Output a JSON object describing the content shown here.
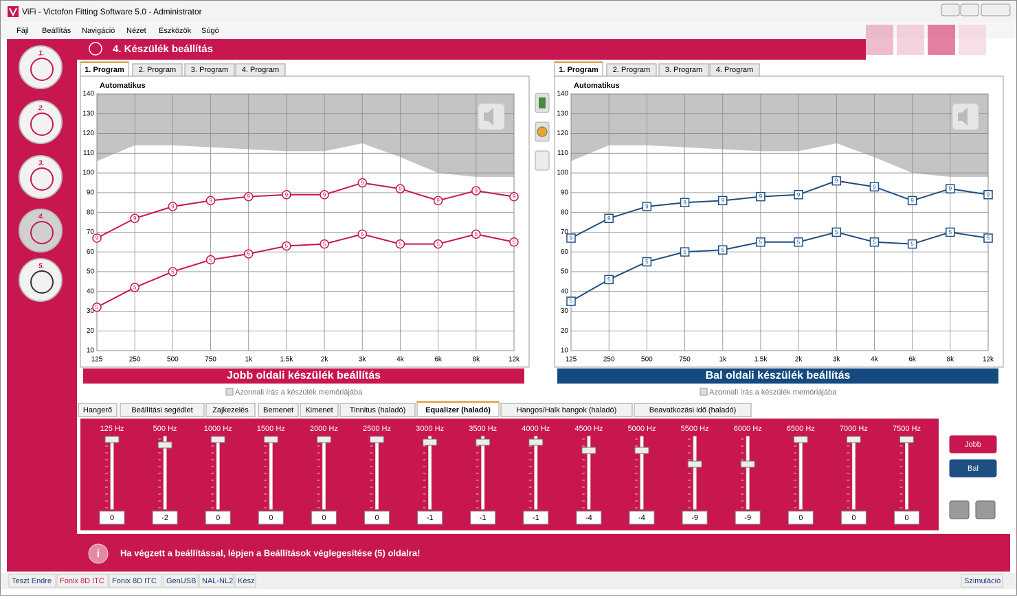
{
  "window": {
    "title": "ViFi - Victofon Fitting Software 5.0 - Administrator"
  },
  "menu": [
    "Fájl",
    "Beállítás",
    "Navigáció",
    "Nézet",
    "Eszközök",
    "Súgó"
  ],
  "header": {
    "title": "4. Készülék beállítás"
  },
  "steps": [
    "1.",
    "2.",
    "3.",
    "4.",
    "5."
  ],
  "charts": [
    {
      "type": "line",
      "tabs": [
        "1. Program",
        "2. Program",
        "3. Program",
        "4. Program"
      ],
      "active_tab": 0,
      "label": "Automatikus",
      "categories": [
        "125",
        "250",
        "500",
        "750",
        "1k",
        "1.5k",
        "2k",
        "3k",
        "4k",
        "6k",
        "8k",
        "12k"
      ],
      "ylim": [
        10,
        140
      ],
      "yticks": [
        10,
        20,
        30,
        40,
        50,
        60,
        70,
        80,
        90,
        100,
        110,
        120,
        130,
        140
      ],
      "grid": true,
      "marker_shape": "circle",
      "limit": {
        "color": "#c4c4c4",
        "values": [
          106,
          114,
          114,
          113,
          112,
          111,
          111,
          115,
          108,
          100,
          98,
          98
        ]
      },
      "series": [
        {
          "marker": "9",
          "color": "#c8174f",
          "values": [
            67,
            77,
            83,
            86,
            88,
            89,
            89,
            95,
            92,
            86,
            91,
            88
          ]
        },
        {
          "marker": "5",
          "color": "#c8174f",
          "values": [
            32,
            42,
            50,
            56,
            59,
            63,
            64,
            69,
            64,
            64,
            69,
            65
          ]
        }
      ],
      "banner": "Jobb oldali készülék beállítás",
      "banner_color": "#c8174f",
      "checkbox": "Azonnali írás a készülék memóriájába"
    },
    {
      "type": "line",
      "tabs": [
        "1. Program",
        "2. Program",
        "3. Program",
        "4. Program"
      ],
      "active_tab": 0,
      "label": "Automatikus",
      "categories": [
        "125",
        "250",
        "500",
        "750",
        "1k",
        "1.5k",
        "2k",
        "3k",
        "4k",
        "6k",
        "8k",
        "12k"
      ],
      "ylim": [
        10,
        140
      ],
      "yticks": [
        10,
        20,
        30,
        40,
        50,
        60,
        70,
        80,
        90,
        100,
        110,
        120,
        130,
        140
      ],
      "grid": true,
      "marker_shape": "square",
      "limit": {
        "color": "#c4c4c4",
        "values": [
          106,
          114,
          114,
          113,
          112,
          111,
          111,
          115,
          108,
          100,
          98,
          98
        ]
      },
      "series": [
        {
          "marker": "9",
          "color": "#1f4e82",
          "values": [
            67,
            77,
            83,
            85,
            86,
            88,
            89,
            96,
            93,
            86,
            92,
            89
          ]
        },
        {
          "marker": "5",
          "color": "#1f4e82",
          "values": [
            35,
            46,
            55,
            60,
            61,
            65,
            65,
            70,
            65,
            64,
            70,
            67
          ]
        }
      ],
      "banner": "Bal oldali készülék beállítás",
      "banner_color": "#144a80",
      "checkbox": "Azonnali írás a készülék memóriájába"
    }
  ],
  "tabs": {
    "items": [
      "Hangerő",
      "Beállítási segédlet",
      "Zajkezelés",
      "Bemenet",
      "Kimenet",
      "Tinnitus (haladó)",
      "Equalizer (haladó)",
      "Hangos/Halk hangok (haladó)",
      "Beavatkozási idő (haladó)"
    ],
    "active": 6
  },
  "equalizer": {
    "range": [
      -25,
      0
    ],
    "bands": [
      {
        "label": "125 Hz",
        "value": 0
      },
      {
        "label": "500 Hz",
        "value": -2
      },
      {
        "label": "1000 Hz",
        "value": 0
      },
      {
        "label": "1500 Hz",
        "value": 0
      },
      {
        "label": "2000 Hz",
        "value": 0
      },
      {
        "label": "2500 Hz",
        "value": 0
      },
      {
        "label": "3000 Hz",
        "value": -1
      },
      {
        "label": "3500 Hz",
        "value": -1
      },
      {
        "label": "4000 Hz",
        "value": -1
      },
      {
        "label": "4500 Hz",
        "value": -4
      },
      {
        "label": "5000 Hz",
        "value": -4
      },
      {
        "label": "5500 Hz",
        "value": -9
      },
      {
        "label": "6000 Hz",
        "value": -9
      },
      {
        "label": "6500 Hz",
        "value": 0
      },
      {
        "label": "7000 Hz",
        "value": 0
      },
      {
        "label": "7500 Hz",
        "value": 0
      }
    ]
  },
  "buttons": [
    "Jobb",
    "Bal"
  ],
  "message": "Ha végzett a beállítással, lépjen a Beállítások véglegesítése (5) oldalra!",
  "status": [
    "Teszt Endre",
    "Fonix 8D ITC",
    "Fonix 8D ITC",
    "GenUSB",
    "NAL-NL2",
    "Kész"
  ],
  "status_right": "Szimuláció"
}
